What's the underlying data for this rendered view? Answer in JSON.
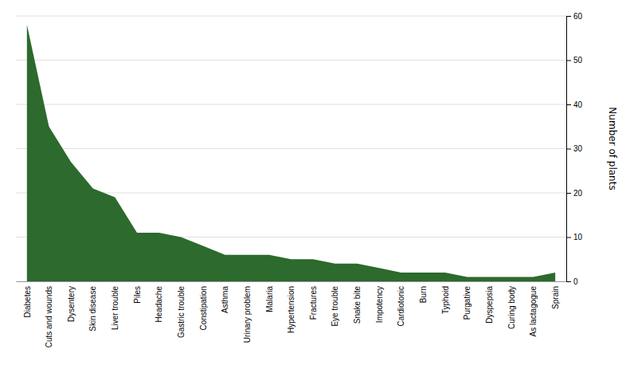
{
  "chart_data": {
    "type": "area",
    "categories": [
      "Diabetes",
      "Cuts and wounds",
      "Dysentery",
      "Skin disease",
      "Liver trouble",
      "Piles",
      "Headache",
      "Gastric trouble",
      "Constipation",
      "Asthma",
      "Urinary problem",
      "Malaria",
      "Hypertension",
      "Fractures",
      "Eye trouble",
      "Snake bite",
      "Impotency",
      "Cardiotonic",
      "Burn",
      "Typhoid",
      "Purgative",
      "Dyspepsia",
      "Curing body",
      "As lactagogue",
      "Sprain"
    ],
    "values": [
      58,
      35,
      27,
      21,
      19,
      11,
      11,
      10,
      8,
      6,
      6,
      6,
      5,
      5,
      4,
      4,
      3,
      2,
      2,
      2,
      1,
      1,
      1,
      1,
      2
    ],
    "color": "#2d6a2d",
    "ylabel": "Number of plants",
    "ylim": [
      0,
      60
    ],
    "yticks": [
      0,
      10,
      20,
      30,
      40,
      50,
      60
    ],
    "grid": true
  }
}
